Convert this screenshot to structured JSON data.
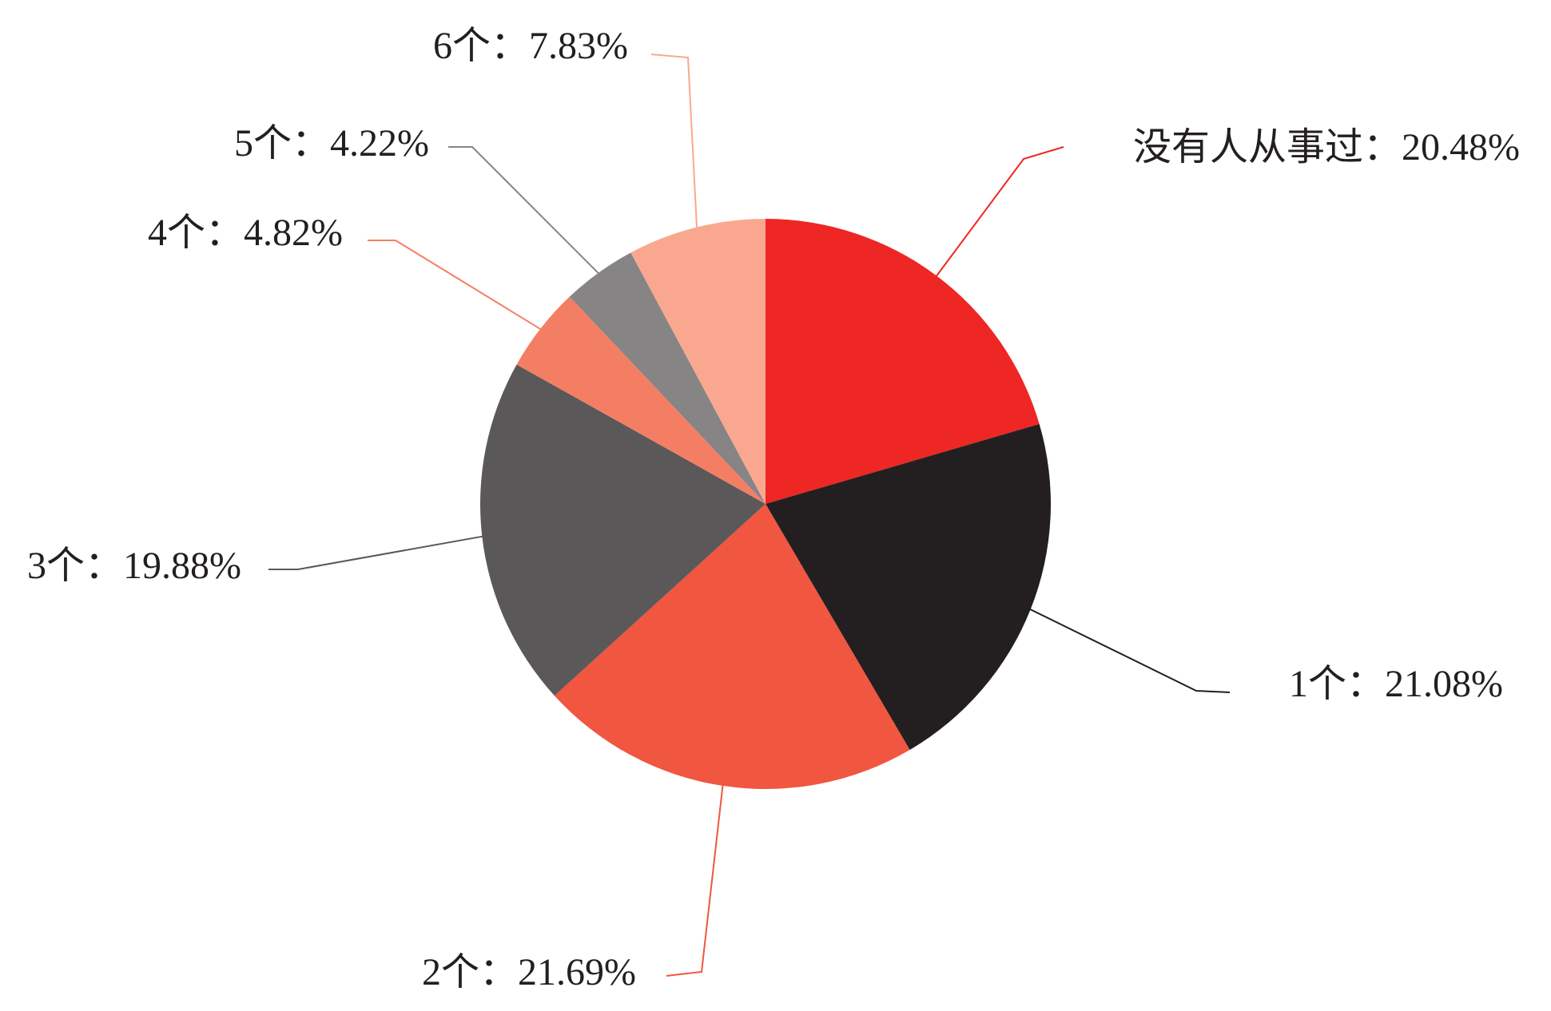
{
  "chart_data": {
    "type": "pie",
    "categories": [
      "没有人从事过",
      "1个",
      "2个",
      "3个",
      "4个",
      "5个",
      "6个"
    ],
    "values": [
      20.48,
      21.08,
      21.69,
      19.88,
      4.82,
      4.22,
      7.83
    ],
    "value_labels": [
      "20.48%",
      "21.08%",
      "21.69%",
      "19.88%",
      "4.82%",
      "4.22%",
      "7.83%"
    ],
    "label_separator": "：",
    "colors": [
      "#ee2724",
      "#231f20",
      "#f15640",
      "#5b5859",
      "#f47e64",
      "#878485",
      "#f9a88f"
    ]
  }
}
